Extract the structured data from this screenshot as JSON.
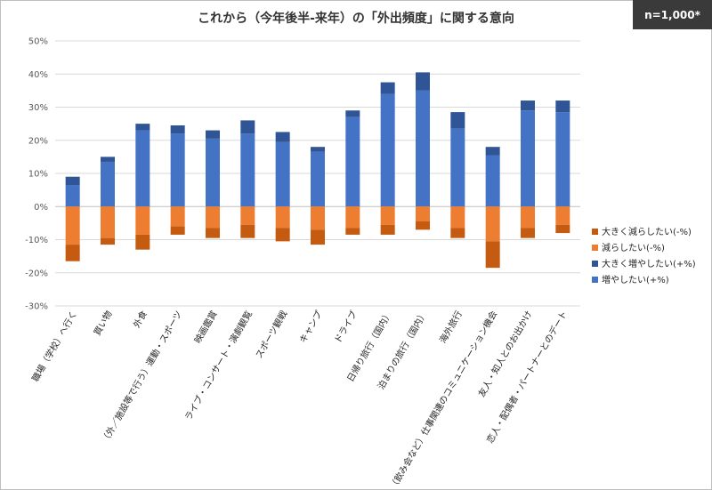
{
  "badge": "n=1,000*",
  "chart_data": {
    "type": "bar",
    "stacked": true,
    "title": "これから（今年後半-来年）の「外出頻度」に関する意向",
    "ylim": [
      -30,
      50
    ],
    "yticks": [
      -30,
      -20,
      -10,
      0,
      10,
      20,
      30,
      40,
      50
    ],
    "ytick_labels": [
      "-30%",
      "-20%",
      "-10%",
      "0%",
      "10%",
      "20%",
      "30%",
      "40%",
      "50%"
    ],
    "grid": true,
    "legend_position": "right",
    "categories": [
      "職場（学校）へ行く",
      "買い物",
      "外食",
      "（外／施設等で行う）運動・スポーツ",
      "映画鑑賞",
      "ライブ・コンサート・演劇観覧",
      "スポーツ観戦",
      "キャンプ",
      "ドライブ",
      "日帰り旅行（国内）",
      "泊まりの旅行（国内）",
      "海外旅行",
      "（飲み会など）仕事関連のコミュニケーション機会",
      "友人・知人とのお出かけ",
      "恋人・配偶者・パートナーとのデート"
    ],
    "series": [
      {
        "name": "大きく減らしたい(-%)",
        "color": "#c55a11",
        "values": [
          -5,
          -2,
          -4.5,
          -2.5,
          -3,
          -4,
          -4,
          -4.5,
          -2,
          -3,
          -2.5,
          -3,
          -8,
          -3,
          -2.5
        ]
      },
      {
        "name": "減らしたい(-%)",
        "color": "#ed7d31",
        "values": [
          -11.5,
          -9.5,
          -8.5,
          -6,
          -6.5,
          -5.5,
          -6.5,
          -7,
          -6.5,
          -5.5,
          -4.5,
          -6.5,
          -10.5,
          -6.5,
          -5.5
        ]
      },
      {
        "name": "大きく増やしたい(+%)",
        "color": "#2f5597",
        "values": [
          2.5,
          1.5,
          2,
          2.5,
          2.5,
          4,
          3,
          1.5,
          2,
          3.5,
          5.5,
          5,
          2.5,
          3,
          3.5
        ]
      },
      {
        "name": "増やしたい(+%)",
        "color": "#4472c4",
        "values": [
          6.5,
          13.5,
          23,
          22,
          20.5,
          22,
          19.5,
          16.5,
          27,
          34,
          35,
          23.5,
          15.5,
          29,
          28.5
        ]
      }
    ],
    "legend_order": [
      "大きく減らしたい(-%)",
      "減らしたい(-%)",
      "大きく増やしたい(+%)",
      "増やしたい(+%)"
    ]
  }
}
